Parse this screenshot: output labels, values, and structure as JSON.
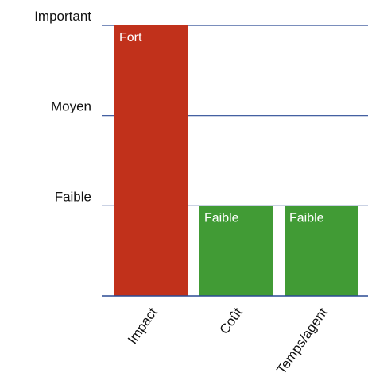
{
  "chart_data": {
    "type": "bar",
    "categories": [
      "Impact",
      "Coût",
      "Temps/agent"
    ],
    "values": [
      3,
      1,
      1
    ],
    "bar_labels": [
      "Fort",
      "Faible",
      "Faible"
    ],
    "y_tick_values": [
      1,
      2,
      3
    ],
    "y_tick_labels": [
      "Faible",
      "Moyen",
      "Important"
    ],
    "ylim": [
      0,
      3
    ],
    "grid": true,
    "legend": "none",
    "colors": [
      "#c1311b",
      "#419b35",
      "#419b35"
    ],
    "gridline_color": "#2a4a94"
  }
}
